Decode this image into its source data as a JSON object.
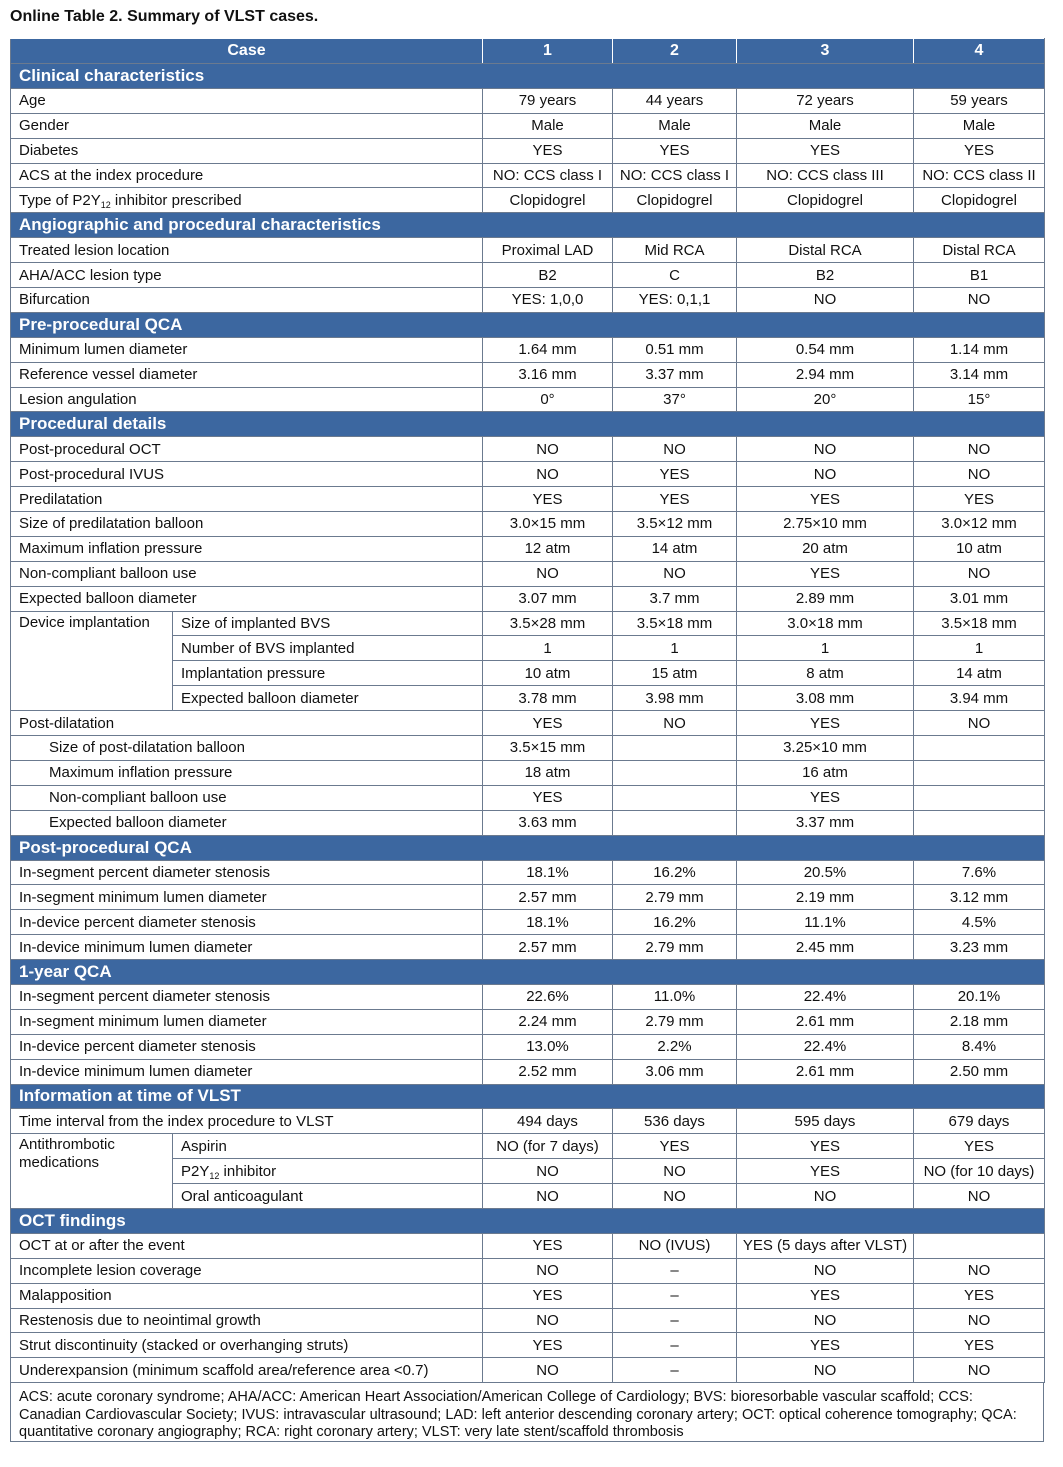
{
  "title": "Online Table 2. Summary of VLST cases.",
  "header": [
    "Case",
    "1",
    "2",
    "3",
    "4"
  ],
  "sections": [
    {
      "title": "Clinical characteristics",
      "rows": [
        {
          "label": "Age",
          "values": [
            "79 years",
            "44 years",
            "72 years",
            "59 years"
          ]
        },
        {
          "label": "Gender",
          "values": [
            "Male",
            "Male",
            "Male",
            "Male"
          ]
        },
        {
          "label": "Diabetes",
          "values": [
            "YES",
            "YES",
            "YES",
            "YES"
          ]
        },
        {
          "label": "ACS at the index procedure",
          "values": [
            "NO: CCS class I",
            "NO: CCS class I",
            "NO: CCS class III",
            "NO: CCS class II"
          ]
        },
        {
          "label": [
            "Type of P2Y",
            "12",
            " inhibitor prescribed"
          ],
          "values": [
            "Clopidogrel",
            "Clopidogrel",
            "Clopidogrel",
            "Clopidogrel"
          ]
        }
      ]
    },
    {
      "title": "Angiographic and procedural characteristics",
      "rows": [
        {
          "label": "Treated lesion location",
          "values": [
            "Proximal LAD",
            "Mid RCA",
            "Distal RCA",
            "Distal RCA"
          ]
        },
        {
          "label": "AHA/ACC lesion type",
          "values": [
            "B2",
            "C",
            "B2",
            "B1"
          ]
        },
        {
          "label": "Bifurcation",
          "values": [
            "YES: 1,0,0",
            "YES: 0,1,1",
            "NO",
            "NO"
          ]
        }
      ]
    },
    {
      "title": "Pre-procedural QCA",
      "rows": [
        {
          "label": "Minimum lumen diameter",
          "values": [
            "1.64 mm",
            "0.51 mm",
            "0.54 mm",
            "1.14 mm"
          ]
        },
        {
          "label": "Reference vessel diameter",
          "values": [
            "3.16 mm",
            "3.37 mm",
            "2.94 mm",
            "3.14 mm"
          ]
        },
        {
          "label": "Lesion angulation",
          "values": [
            "0°",
            "37°",
            "20°",
            "15°"
          ]
        }
      ]
    },
    {
      "title": "Procedural details",
      "rows": [
        {
          "label": "Post-procedural OCT",
          "values": [
            "NO",
            "NO",
            "NO",
            "NO"
          ]
        },
        {
          "label": "Post-procedural IVUS",
          "values": [
            "NO",
            "YES",
            "NO",
            "NO"
          ]
        },
        {
          "label": "Predilatation",
          "values": [
            "YES",
            "YES",
            "YES",
            "YES"
          ]
        },
        {
          "label": "Size of predilatation balloon",
          "values": [
            "3.0×15 mm",
            "3.5×12 mm",
            "2.75×10 mm",
            "3.0×12 mm"
          ]
        },
        {
          "label": "Maximum inflation pressure",
          "values": [
            "12 atm",
            "14 atm",
            "20 atm",
            "10 atm"
          ]
        },
        {
          "label": "Non-compliant balloon use",
          "values": [
            "NO",
            "NO",
            "YES",
            "NO"
          ]
        },
        {
          "label": "Expected balloon diameter",
          "values": [
            "3.07 mm",
            "3.7 mm",
            "2.89 mm",
            "3.01 mm"
          ]
        },
        {
          "group": "Device implantation",
          "rows": [
            {
              "label": "Size of implanted BVS",
              "values": [
                "3.5×28 mm",
                "3.5×18 mm",
                "3.0×18 mm",
                "3.5×18 mm"
              ]
            },
            {
              "label": "Number of BVS implanted",
              "values": [
                "1",
                "1",
                "1",
                "1"
              ]
            },
            {
              "label": "Implantation pressure",
              "values": [
                "10 atm",
                "15 atm",
                "8 atm",
                "14 atm"
              ]
            },
            {
              "label": "Expected balloon diameter",
              "values": [
                "3.78 mm",
                "3.98 mm",
                "3.08 mm",
                "3.94 mm"
              ]
            }
          ]
        },
        {
          "label": "Post-dilatation",
          "values": [
            "YES",
            "NO",
            "YES",
            "NO"
          ]
        },
        {
          "label": "Size of post-dilatation balloon",
          "indent": true,
          "values": [
            "3.5×15 mm",
            null,
            "3.25×10 mm",
            null
          ]
        },
        {
          "label": "Maximum inflation pressure",
          "indent": true,
          "values": [
            "18 atm",
            null,
            "16 atm",
            null
          ]
        },
        {
          "label": "Non-compliant balloon use",
          "indent": true,
          "values": [
            "YES",
            null,
            "YES",
            null
          ]
        },
        {
          "label": "Expected balloon diameter",
          "indent": true,
          "values": [
            "3.63 mm",
            null,
            "3.37 mm",
            null
          ]
        }
      ]
    },
    {
      "title": "Post-procedural QCA",
      "rows": [
        {
          "label": "In-segment percent diameter stenosis",
          "values": [
            "18.1%",
            "16.2%",
            "20.5%",
            "7.6%"
          ]
        },
        {
          "label": "In-segment minimum lumen diameter",
          "values": [
            "2.57 mm",
            "2.79 mm",
            "2.19 mm",
            "3.12 mm"
          ]
        },
        {
          "label": "In-device percent diameter stenosis",
          "values": [
            "18.1%",
            "16.2%",
            "11.1%",
            "4.5%"
          ]
        },
        {
          "label": "In-device minimum lumen diameter",
          "values": [
            "2.57 mm",
            "2.79 mm",
            "2.45 mm",
            "3.23 mm"
          ]
        }
      ]
    },
    {
      "title": "1-year QCA",
      "rows": [
        {
          "label": "In-segment percent diameter stenosis",
          "values": [
            "22.6%",
            "11.0%",
            "22.4%",
            "20.1%"
          ]
        },
        {
          "label": "In-segment minimum lumen diameter",
          "values": [
            "2.24 mm",
            "2.79 mm",
            "2.61 mm",
            "2.18 mm"
          ]
        },
        {
          "label": "In-device percent diameter stenosis",
          "values": [
            "13.0%",
            "2.2%",
            "22.4%",
            "8.4%"
          ]
        },
        {
          "label": "In-device minimum lumen diameter",
          "values": [
            "2.52 mm",
            "3.06 mm",
            "2.61 mm",
            "2.50 mm"
          ]
        }
      ]
    },
    {
      "title": "Information at time of VLST",
      "rows": [
        {
          "label": "Time interval from the index procedure to VLST",
          "values": [
            "494 days",
            "536 days",
            "595 days",
            "679 days"
          ]
        },
        {
          "group": "Antithrombotic medications",
          "rows": [
            {
              "label": "Aspirin",
              "values": [
                "NO (for 7 days)",
                "YES",
                "YES",
                "YES"
              ]
            },
            {
              "label": [
                "P2Y",
                "12",
                " inhibitor"
              ],
              "values": [
                "NO",
                "NO",
                "YES",
                "NO (for 10 days)"
              ]
            },
            {
              "label": "Oral anticoagulant",
              "values": [
                "NO",
                "NO",
                "NO",
                "NO"
              ]
            }
          ]
        }
      ]
    },
    {
      "title": "OCT findings",
      "rows": [
        {
          "label": "OCT at or after the event",
          "values": [
            "YES",
            "NO (IVUS)",
            "YES (5 days after VLST)",
            null
          ]
        },
        {
          "label": "Incomplete lesion coverage",
          "values": [
            "NO",
            "–",
            "NO",
            "NO"
          ]
        },
        {
          "label": "Malapposition",
          "values": [
            "YES",
            "–",
            "YES",
            "YES"
          ]
        },
        {
          "label": "Restenosis due to neointimal growth",
          "values": [
            "NO",
            "–",
            "NO",
            "NO"
          ]
        },
        {
          "label": "Strut discontinuity (stacked or overhanging struts)",
          "values": [
            "YES",
            "–",
            "YES",
            "YES"
          ]
        },
        {
          "label": "Underexpansion (minimum scaffold area/reference area <0.7)",
          "values": [
            "NO",
            "–",
            "NO",
            "NO"
          ]
        }
      ]
    }
  ],
  "footnote": "ACS: acute coronary syndrome; AHA/ACC: American Heart Association/American College of Cardiology; BVS: bioresorbable vascular scaffold; CCS: Canadian Cardiovascular Society; IVUS: intravascular ultrasound; LAD: left anterior descending coronary artery; OCT: optical coherence tomography; QCA: quantitative coronary angiography; RCA: right coronary artery; VLST: very late stent/scaffold thrombosis"
}
